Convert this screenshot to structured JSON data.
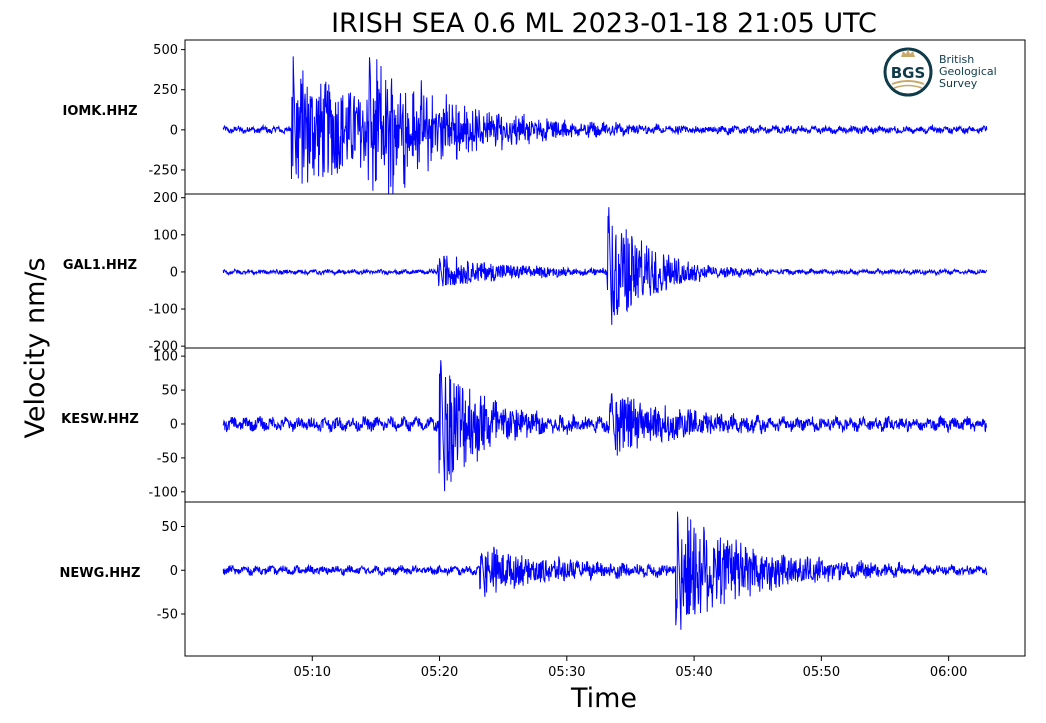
{
  "title": "IRISH SEA 0.6 ML   2023-01-18 21:05 UTC",
  "ylabel": "Velocity nm/s",
  "xlabel": "Time",
  "logo": {
    "mark": "BGS",
    "line1": "British",
    "line2": "Geological",
    "line3": "Survey"
  },
  "colors": {
    "trace": "#0000ff",
    "axes": "#000000",
    "logo": "#0f3b4a",
    "logo_accent": "#c8a96a"
  },
  "chart_data": {
    "type": "line",
    "x_unit": "time (mm:ss)",
    "xlim": [
      "05:00",
      "06:06"
    ],
    "x_ticks": [
      "05:10",
      "05:20",
      "05:30",
      "05:40",
      "05:50",
      "06:00"
    ],
    "x_tick_values_s": [
      310,
      320,
      330,
      340,
      350,
      360
    ],
    "trace_start": "05:03",
    "trace_end": "06:03",
    "grid": false,
    "panels": [
      {
        "station": "IOMK.HHZ",
        "ylim": [
          -400,
          560
        ],
        "y_ticks": [
          500,
          250,
          0,
          -250
        ],
        "y_tick_labels": [
          "500",
          "250",
          "0",
          "-250"
        ],
        "noise": 18,
        "bursts": [
          {
            "time": "05:08.5",
            "peak": 510,
            "min": -370,
            "decay_s": 9,
            "period_s": 0.25
          },
          {
            "time": "05:14.5",
            "peak": 420,
            "min": -380,
            "decay_s": 6,
            "period_s": 0.25
          }
        ]
      },
      {
        "station": "GAL1.HHZ",
        "ylim": [
          -205,
          210
        ],
        "y_ticks": [
          200,
          100,
          0,
          -100,
          -200
        ],
        "y_tick_labels": [
          "200",
          "100",
          "0",
          "-100",
          "-200"
        ],
        "noise": 5,
        "bursts": [
          {
            "time": "05:20",
            "peak": 45,
            "min": -55,
            "decay_s": 6,
            "period_s": 0.3
          },
          {
            "time": "05:33.3",
            "peak": 200,
            "min": -185,
            "decay_s": 3.5,
            "period_s": 0.25
          }
        ]
      },
      {
        "station": "KESW.HHZ",
        "ylim": [
          -115,
          112
        ],
        "y_ticks": [
          100,
          50,
          0,
          -50,
          -100
        ],
        "y_tick_labels": [
          "100",
          "50",
          "0",
          "-50",
          "-100"
        ],
        "noise": 8,
        "bursts": [
          {
            "time": "05:20.1",
            "peak": 108,
            "min": -112,
            "decay_s": 4,
            "period_s": 0.3
          },
          {
            "time": "05:33.5",
            "peak": 48,
            "min": -50,
            "decay_s": 6,
            "period_s": 0.35
          }
        ]
      },
      {
        "station": "NEWG.HHZ",
        "ylim": [
          -98,
          78
        ],
        "y_ticks": [
          50,
          0,
          -50
        ],
        "y_tick_labels": [
          "50",
          "0",
          "-50"
        ],
        "noise": 4,
        "bursts": [
          {
            "time": "05:23.3",
            "peak": 22,
            "min": -38,
            "decay_s": 7,
            "period_s": 0.3
          },
          {
            "time": "05:38.7",
            "peak": 70,
            "min": -90,
            "decay_s": 6,
            "period_s": 0.3
          }
        ]
      }
    ]
  }
}
